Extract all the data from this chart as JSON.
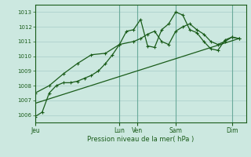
{
  "title": "",
  "xlabel": "Pression niveau de la mer( hPa )",
  "bg_color": "#cce8e0",
  "line_color": "#1a5c1a",
  "grid_color": "#a8ccc8",
  "ylim": [
    1005.5,
    1013.5
  ],
  "yticks": [
    1006,
    1007,
    1008,
    1009,
    1010,
    1011,
    1012,
    1013
  ],
  "xlim": [
    0,
    12.0
  ],
  "x_day_labels": [
    "Jeu",
    "Lun",
    "Ven",
    "Sam",
    "Dim"
  ],
  "x_day_positions": [
    0.0,
    4.8,
    5.8,
    8.0,
    11.2
  ],
  "series1_x": [
    0.0,
    0.4,
    0.8,
    1.2,
    1.6,
    2.0,
    2.4,
    2.8,
    3.2,
    3.6,
    4.0,
    4.4,
    4.8,
    5.2,
    5.6,
    6.0,
    6.4,
    6.8,
    7.2,
    7.6,
    8.0,
    8.4,
    8.8,
    9.2,
    9.6,
    10.0,
    10.4,
    10.8,
    11.2,
    11.6
  ],
  "series1_y": [
    1005.9,
    1006.2,
    1007.5,
    1008.0,
    1008.2,
    1008.2,
    1008.3,
    1008.5,
    1008.7,
    1009.0,
    1009.5,
    1010.1,
    1010.8,
    1011.7,
    1011.8,
    1012.5,
    1010.7,
    1010.6,
    1011.8,
    1012.2,
    1013.0,
    1012.8,
    1011.8,
    1011.6,
    1011.0,
    1010.5,
    1010.4,
    1011.1,
    1011.3,
    1011.2
  ],
  "series2_x": [
    0.0,
    0.8,
    1.6,
    2.4,
    3.2,
    4.0,
    4.8,
    5.6,
    6.0,
    6.4,
    6.8,
    7.2,
    7.6,
    8.0,
    8.4,
    8.8,
    9.2,
    9.6,
    10.0,
    10.4,
    10.8,
    11.2,
    11.6
  ],
  "series2_y": [
    1007.5,
    1008.0,
    1008.8,
    1009.5,
    1010.1,
    1010.2,
    1010.8,
    1011.0,
    1011.2,
    1011.5,
    1011.7,
    1011.0,
    1010.8,
    1011.7,
    1012.0,
    1012.2,
    1011.8,
    1011.5,
    1011.0,
    1010.8,
    1011.0,
    1011.3,
    1011.2
  ],
  "trend_x": [
    0.0,
    11.6
  ],
  "trend_y": [
    1006.8,
    1011.2
  ]
}
